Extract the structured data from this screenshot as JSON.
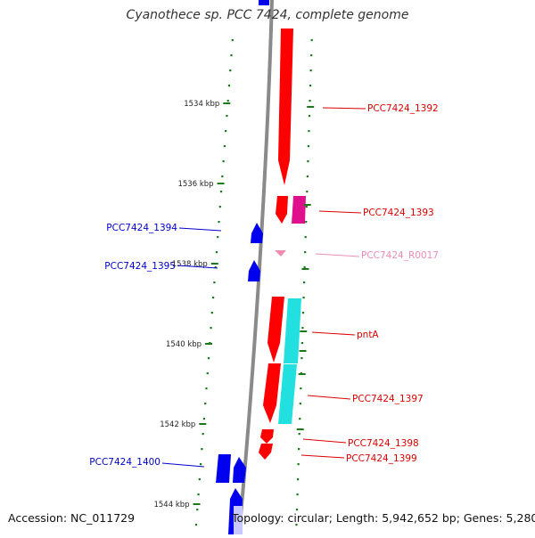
{
  "title": "Cyanothece sp. PCC 7424, complete genome",
  "footer": {
    "accession": "Accession: NC_011729",
    "summary": "Topology: circular; Length: 5,942,652 bp; Genes: 5,280"
  },
  "scale_ticks": [
    {
      "label": "1534 kbp",
      "kbp": 1534
    },
    {
      "label": "1536 kbp",
      "kbp": 1536
    },
    {
      "label": "1538 kbp",
      "kbp": 1538
    },
    {
      "label": "1540 kbp",
      "kbp": 1540
    },
    {
      "label": "1542 kbp",
      "kbp": 1542
    },
    {
      "label": "1544 kbp",
      "kbp": 1544
    }
  ],
  "genes": [
    {
      "label": "PCC7424_1392",
      "strand": "+",
      "color": "#dd0000"
    },
    {
      "label": "PCC7424_1393",
      "strand": "+",
      "color": "#dd0000"
    },
    {
      "label": "PCC7424_1394",
      "strand": "-",
      "color": "#0000cc"
    },
    {
      "label": "PCC7424_1395",
      "strand": "-",
      "color": "#0000cc"
    },
    {
      "label": "PCC7424_R0017",
      "strand": "+",
      "color": "#f08cb4"
    },
    {
      "label": "pntA",
      "strand": "+",
      "color": "#dd0000"
    },
    {
      "label": "PCC7424_1397",
      "strand": "+",
      "color": "#dd0000"
    },
    {
      "label": "PCC7424_1398",
      "strand": "+",
      "color": "#dd0000"
    },
    {
      "label": "PCC7424_1399",
      "strand": "+",
      "color": "#dd0000"
    },
    {
      "label": "PCC7424_1400",
      "strand": "-",
      "color": "#0000cc"
    }
  ],
  "feature_colors": {
    "plus_gene": "#ff0000",
    "minus_gene": "#0000ee",
    "cds_magenta": "#e0108c",
    "cds_cyan": "#22e0e0",
    "rna": "#f08cb4",
    "backbone": "#888888",
    "ticks": "#1a7a1a"
  }
}
